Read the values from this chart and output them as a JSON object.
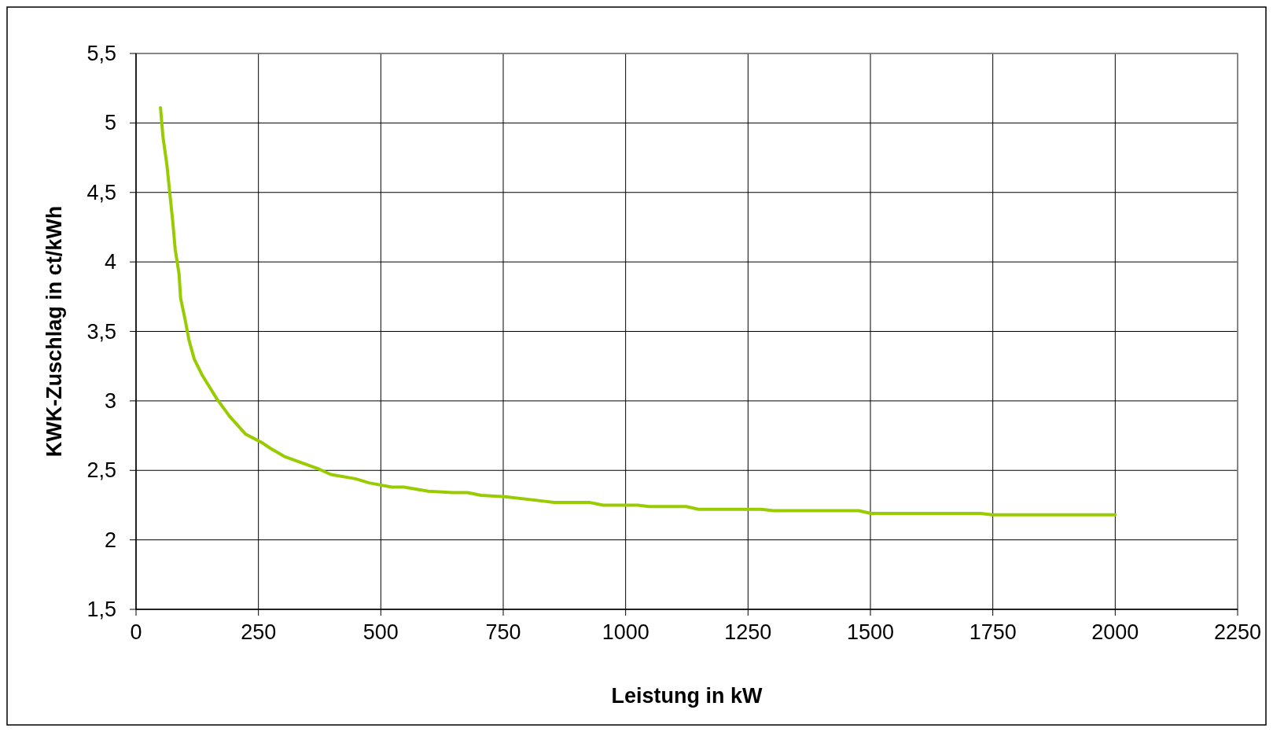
{
  "chart_data": {
    "type": "line",
    "xlabel": "Leistung in kW",
    "ylabel": "KWK-Zuschlag in ct/kWh",
    "xlim": [
      0,
      2250
    ],
    "xticks": [
      0,
      250,
      500,
      750,
      1000,
      1250,
      1500,
      1750,
      2000,
      2250
    ],
    "ylim": [
      1.5,
      5.5
    ],
    "yticks": [
      {
        "value": 1.5,
        "label": "1,5"
      },
      2,
      {
        "value": 2.5,
        "label": "2,5"
      },
      3,
      {
        "value": 3.5,
        "label": "3,5"
      },
      4,
      {
        "value": 4.5,
        "label": "4,5"
      },
      5,
      {
        "value": 5.5,
        "label": "5,5"
      }
    ],
    "grid": true,
    "marker": "none",
    "line_style": "solid",
    "series": [
      {
        "color": "#99cc00",
        "x": [
          50,
          55,
          63,
          75,
          80,
          88,
          91,
          100,
          108,
          119,
          136,
          166,
          191,
          224,
          257,
          274,
          303,
          373,
          398,
          448,
          476,
          522,
          547,
          597,
          647,
          677,
          705,
          754,
          829,
          854,
          925,
          954,
          1025,
          1048,
          1124,
          1149,
          1277,
          1302,
          1476,
          1501,
          1725,
          1749,
          2000
        ],
        "values": [
          5.11,
          4.9,
          4.7,
          4.29,
          4.09,
          3.91,
          3.74,
          3.59,
          3.44,
          3.3,
          3.18,
          3.01,
          2.89,
          2.76,
          2.7,
          2.66,
          2.6,
          2.51,
          2.47,
          2.44,
          2.41,
          2.38,
          2.38,
          2.35,
          2.34,
          2.34,
          2.32,
          2.31,
          2.28,
          2.27,
          2.27,
          2.25,
          2.25,
          2.24,
          2.24,
          2.22,
          2.22,
          2.21,
          2.21,
          2.19,
          2.19,
          2.18,
          2.18
        ]
      }
    ]
  }
}
